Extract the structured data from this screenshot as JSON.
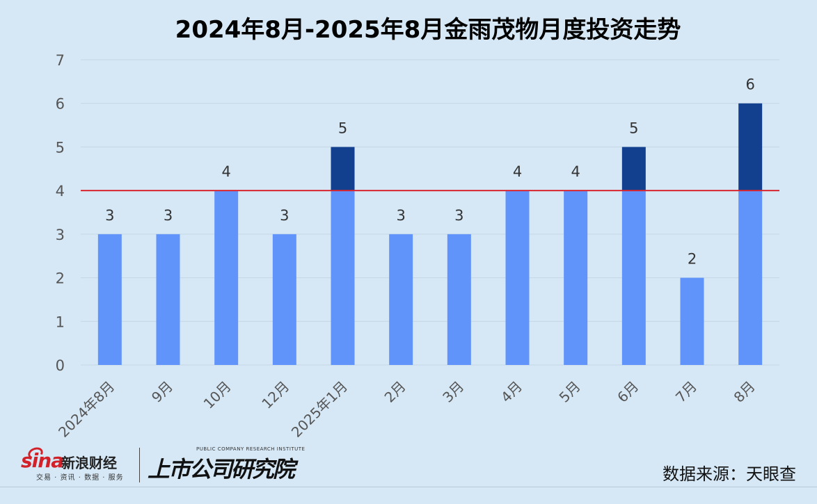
{
  "chart_data": {
    "type": "bar",
    "title": "2024年8月-2025年8月金雨茂物月度投资走势",
    "categories": [
      "2024年8月",
      "9月",
      "10月",
      "12月",
      "2025年1月",
      "2月",
      "3月",
      "4月",
      "5月",
      "6月",
      "7月",
      "8月"
    ],
    "values": [
      3,
      3,
      4,
      3,
      5,
      3,
      3,
      4,
      4,
      5,
      2,
      6
    ],
    "ylim": [
      0,
      7
    ],
    "yticks": [
      0,
      1,
      2,
      3,
      4,
      5,
      6,
      7
    ],
    "reference_line": 4,
    "grid": true,
    "legend": "none",
    "colors": {
      "base_bar": "#6094fb",
      "above_line": "#12408e",
      "reference_line": "#d9262e",
      "grid": "#c4d6e4"
    }
  },
  "footer": {
    "sina_logo_word": "sina",
    "sina_logo_cn": "新浪财经",
    "sina_logo_sub": "交易 · 资讯 · 数据 · 服务",
    "research_logo_en": "PUBLIC COMPANY RESEARCH INSTITUTE",
    "research_logo_cn": "上市公司研究院",
    "source": "数据来源：天眼查"
  }
}
